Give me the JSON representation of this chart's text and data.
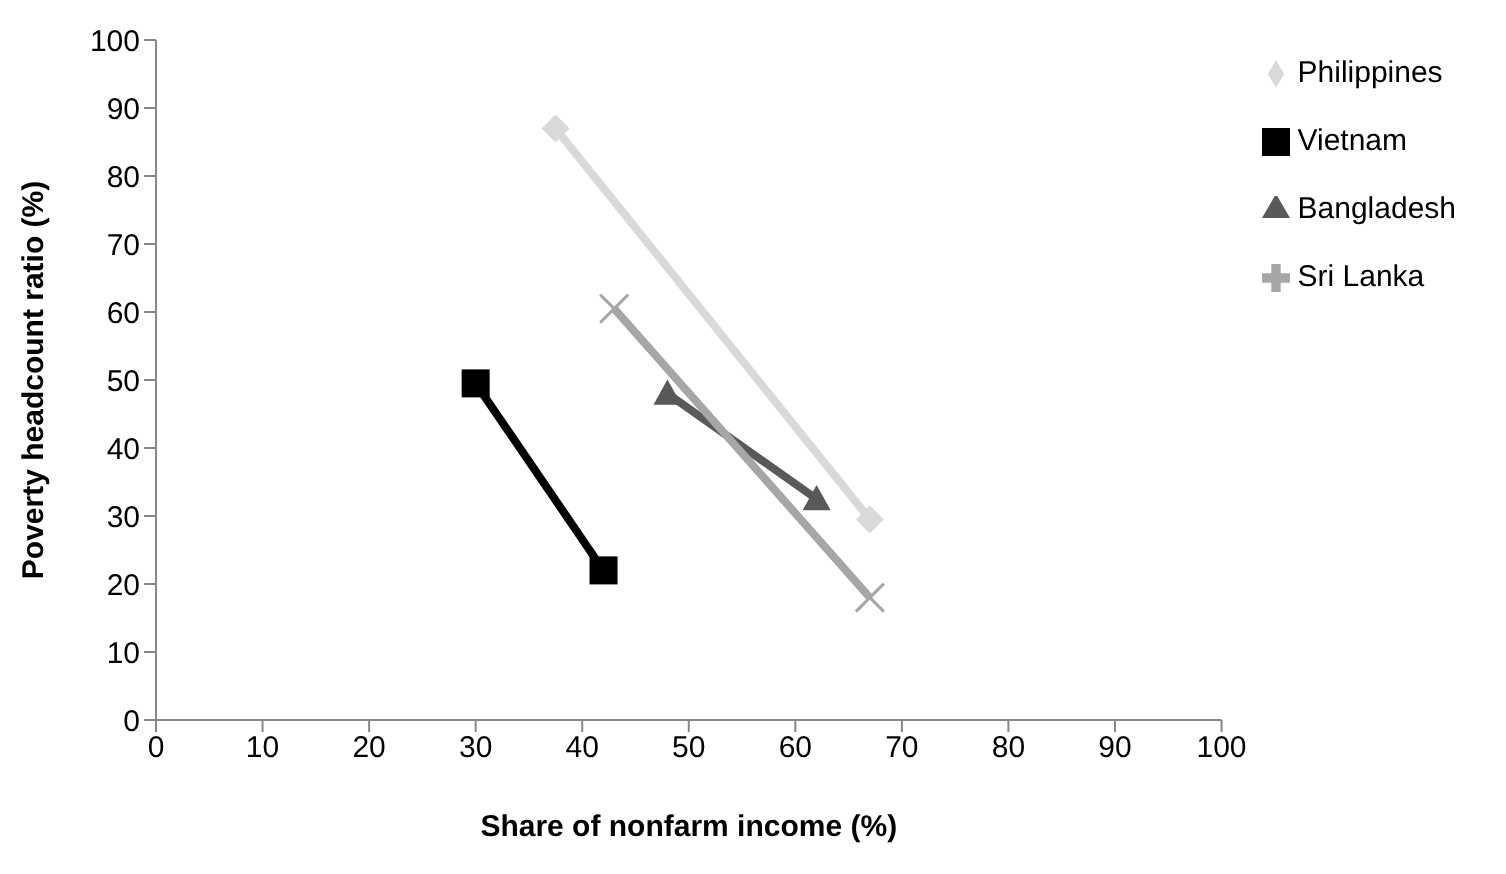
{
  "chart_data": {
    "type": "line",
    "xlabel": "Share of nonfarm income (%)",
    "ylabel": "Poverty headcount ratio (%)",
    "xlim": [
      0,
      100
    ],
    "xticks": [
      0,
      10,
      20,
      30,
      40,
      50,
      60,
      70,
      80,
      90,
      100
    ],
    "ylim": [
      0,
      100
    ],
    "yticks": [
      0,
      10,
      20,
      30,
      40,
      50,
      60,
      70,
      80,
      90,
      100
    ],
    "grid": false,
    "legend": "right",
    "series": [
      {
        "name": "Philippines",
        "color": "#d9d9d9",
        "marker": "diamond",
        "x": [
          37.5,
          67
        ],
        "values": [
          87,
          29.5
        ]
      },
      {
        "name": "Vietnam",
        "color": "#000000",
        "marker": "square",
        "x": [
          30,
          42
        ],
        "values": [
          49.5,
          22
        ]
      },
      {
        "name": "Bangladesh",
        "color": "#595959",
        "marker": "triangle",
        "x": [
          48,
          62
        ],
        "values": [
          48,
          32.5
        ]
      },
      {
        "name": "Sri Lanka",
        "color": "#a6a6a6",
        "marker": "cross",
        "x": [
          43,
          67
        ],
        "values": [
          60.5,
          18
        ]
      }
    ]
  }
}
